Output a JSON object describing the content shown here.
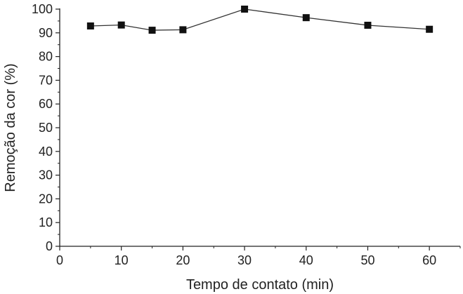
{
  "chart_data": {
    "type": "line",
    "title": "",
    "xlabel": "Tempo de contato (min)",
    "ylabel": "Remoção da cor (%)",
    "xlim": [
      0,
      65
    ],
    "ylim": [
      0,
      100
    ],
    "xticks": [
      0,
      10,
      20,
      30,
      40,
      50,
      60
    ],
    "yticks": [
      0,
      10,
      20,
      30,
      40,
      50,
      60,
      70,
      80,
      90,
      100
    ],
    "grid": false,
    "marker": "square",
    "color": "#111111",
    "series": [
      {
        "x": [
          5,
          10,
          15,
          20,
          30,
          40,
          50,
          60
        ],
        "y": [
          92.9,
          93.3,
          91.1,
          91.3,
          100,
          96.4,
          93.2,
          91.5
        ]
      }
    ]
  }
}
